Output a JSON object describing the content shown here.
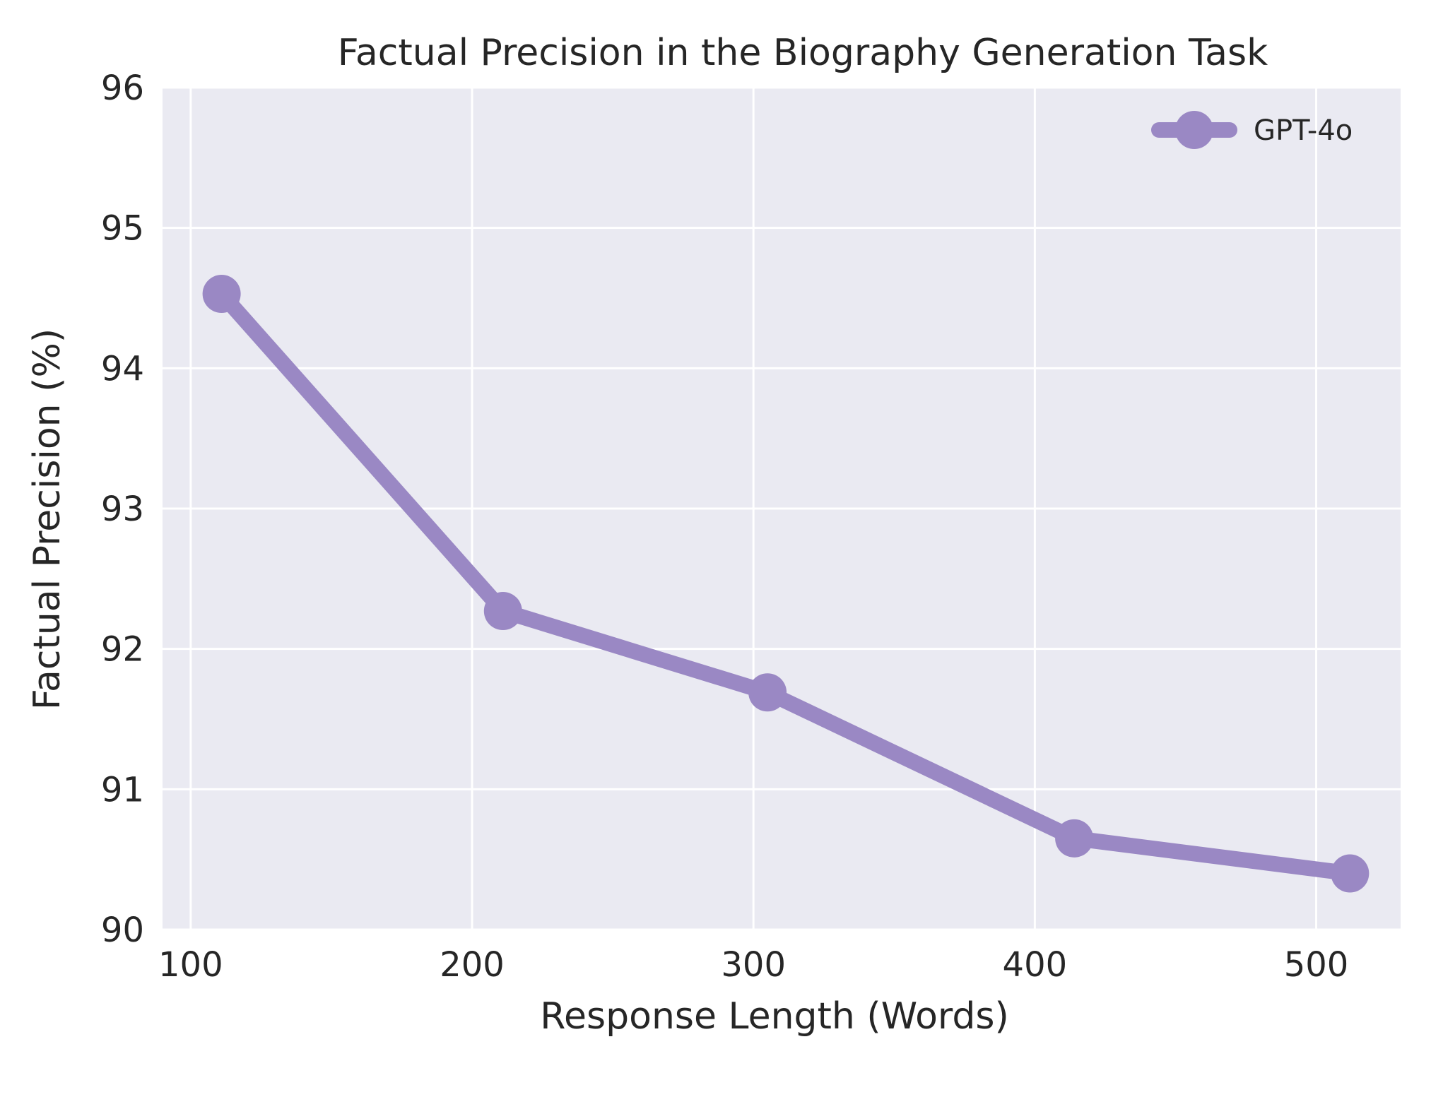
{
  "chart_data": {
    "type": "line",
    "title": "Factual Precision in the Biography Generation Task",
    "xlabel": "Response Length (Words)",
    "ylabel": "Factual Precision (%)",
    "xlim": [
      90,
      530
    ],
    "ylim": [
      90,
      96
    ],
    "x_ticks": [
      100,
      200,
      300,
      400,
      500
    ],
    "x_tick_labels": [
      "100",
      "200",
      "300",
      "400",
      "500"
    ],
    "y_ticks": [
      90,
      91,
      92,
      93,
      94,
      95,
      96
    ],
    "y_tick_labels": [
      "90",
      "91",
      "92",
      "93",
      "94",
      "95",
      "96"
    ],
    "grid": true,
    "legend": {
      "position": "top-right"
    },
    "plot_background": "#eaeaf2",
    "grid_color": "#ffffff",
    "series": [
      {
        "name": "GPT-4o",
        "color": "#9a88c4",
        "x": [
          111,
          211,
          305,
          414,
          512
        ],
        "y": [
          94.53,
          92.27,
          91.69,
          90.65,
          90.4
        ]
      }
    ]
  }
}
